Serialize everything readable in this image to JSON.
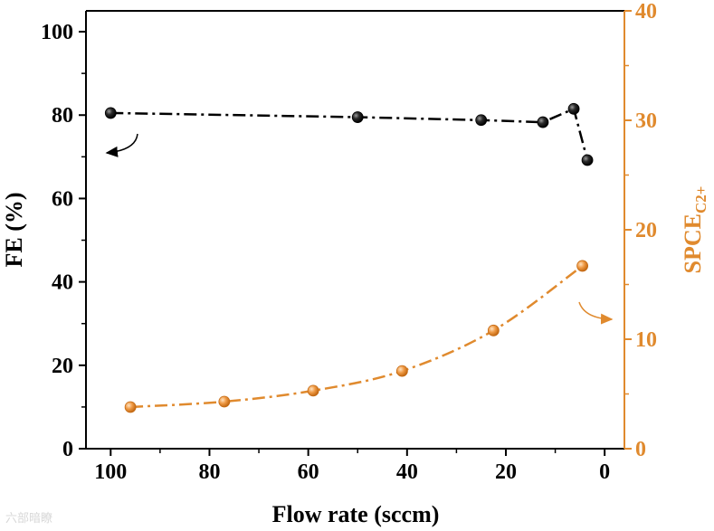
{
  "chart_data": {
    "type": "scatter",
    "xlabel": "Flow rate (sccm)",
    "ylabel_left": "FE (%)",
    "ylabel_right_main": "SPCE",
    "ylabel_right_sub": "C2+",
    "xlim": [
      105,
      -4
    ],
    "xticks": [
      100,
      80,
      60,
      40,
      20,
      0
    ],
    "ylim_left": [
      0,
      105
    ],
    "yticks_left": [
      0,
      20,
      40,
      60,
      80,
      100
    ],
    "ylim_right": [
      0,
      40
    ],
    "yticks_right": [
      0,
      10,
      20,
      30,
      40
    ],
    "series": [
      {
        "name": "FE",
        "axis": "left",
        "color": "#000000",
        "x": [
          100,
          50,
          25,
          12.5,
          6.25,
          3.5
        ],
        "y": [
          80.5,
          79.5,
          78.8,
          78.3,
          81.5,
          69.2
        ]
      },
      {
        "name": "SPCE C2+",
        "axis": "right",
        "color": "#e08a2e",
        "x": [
          96,
          77,
          59,
          41,
          22.5,
          4.5
        ],
        "y": [
          3.8,
          4.3,
          5.3,
          7.1,
          10.8,
          16.7
        ]
      }
    ]
  },
  "watermark": "六部暗瞭"
}
